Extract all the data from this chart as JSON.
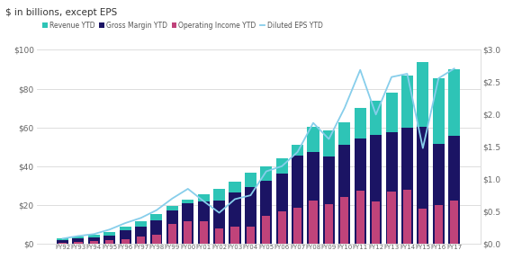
{
  "years": [
    "FY92",
    "FY93",
    "FY94",
    "FY95",
    "FY96",
    "FY97",
    "FY98",
    "FY99",
    "FY00",
    "FY01",
    "FY02",
    "FY03",
    "FY04",
    "FY05",
    "FY06",
    "FY07",
    "FY08",
    "FY09",
    "FY10",
    "FY11",
    "FY12",
    "FY13",
    "FY14",
    "FY15",
    "FY16",
    "FY17"
  ],
  "revenue": [
    2.8,
    3.8,
    4.6,
    6.0,
    9.0,
    11.4,
    15.3,
    19.7,
    22.9,
    25.3,
    28.4,
    32.2,
    36.8,
    39.8,
    44.3,
    51.1,
    60.4,
    58.4,
    62.5,
    69.9,
    73.7,
    77.8,
    86.8,
    93.6,
    85.3,
    89.9
  ],
  "gross_margin": [
    2.0,
    2.8,
    3.4,
    4.4,
    6.9,
    8.7,
    12.3,
    17.2,
    20.7,
    22.0,
    22.1,
    26.5,
    29.4,
    32.4,
    36.3,
    45.5,
    47.1,
    44.8,
    50.9,
    54.4,
    56.2,
    57.6,
    59.9,
    60.5,
    51.7,
    55.7
  ],
  "operating_income": [
    0.7,
    1.0,
    1.5,
    2.0,
    2.2,
    3.5,
    4.5,
    10.0,
    11.5,
    11.7,
    7.8,
    9.0,
    9.0,
    14.6,
    16.5,
    18.5,
    22.5,
    20.4,
    24.1,
    27.2,
    21.8,
    26.8,
    27.8,
    18.2,
    19.8,
    22.3
  ],
  "eps": [
    0.08,
    0.12,
    0.15,
    0.22,
    0.32,
    0.4,
    0.52,
    0.7,
    0.85,
    0.66,
    0.48,
    0.69,
    0.75,
    1.12,
    1.2,
    1.42,
    1.87,
    1.62,
    2.1,
    2.69,
    2.0,
    2.58,
    2.63,
    1.48,
    2.56,
    2.71
  ],
  "revenue_color": "#2EC4B6",
  "gross_margin_color": "#1B1464",
  "operating_income_color": "#C0437A",
  "eps_color": "#87CEEB",
  "background_color": "#ffffff",
  "grid_color": "#d8d8d8",
  "title": "$ in billions, except EPS",
  "legend_labels": [
    "Revenue YTD",
    "Gross Margin YTD",
    "Operating Income YTD",
    "Diluted EPS YTD"
  ],
  "ylim_left": [
    0,
    100
  ],
  "ylim_right": [
    0,
    3.0
  ],
  "yticks_left": [
    0,
    20,
    40,
    60,
    80,
    100
  ],
  "yticks_right": [
    0.0,
    0.5,
    1.0,
    1.5,
    2.0,
    2.5,
    3.0
  ]
}
